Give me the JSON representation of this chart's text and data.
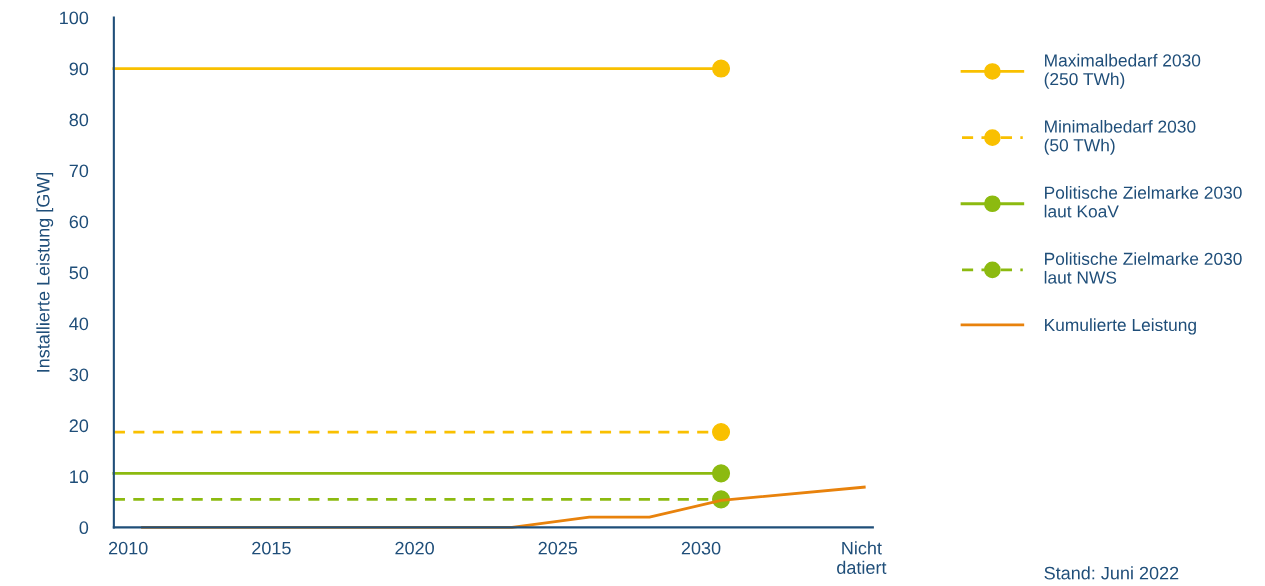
{
  "chart_data": {
    "type": "line",
    "ylabel": "Installierte Leistung [GW]",
    "xlim": [
      2009.5,
      2036
    ],
    "xticks": [
      2010,
      2015,
      2020,
      2025,
      2030,
      {
        "value": 2035.6,
        "label": "Nicht\ndatiert"
      }
    ],
    "ylim": [
      0,
      100
    ],
    "yticks": [
      0,
      10,
      20,
      30,
      40,
      50,
      60,
      70,
      80,
      90,
      100
    ],
    "grid": false,
    "legend": "right",
    "series": [
      {
        "name": "Maximalbedarf 2030\n(250 TWh)",
        "color": "#f9c000",
        "x": [
          2009.5,
          2030.7
        ],
        "values": [
          90,
          90
        ],
        "marker": "circle",
        "line_style": "solid"
      },
      {
        "name": "Minimalbedarf 2030\n(50 TWh)",
        "color": "#f9c000",
        "x": [
          2009.5,
          2030.7
        ],
        "values": [
          18.7,
          18.7
        ],
        "marker": "circle",
        "line_style": "dashed"
      },
      {
        "name": "Politische Zielmarke 2030\nlaut KoaV",
        "color": "#8cba10",
        "x": [
          2009.5,
          2030.7
        ],
        "values": [
          10.6,
          10.6
        ],
        "marker": "circle",
        "line_style": "solid"
      },
      {
        "name": "Politische Zielmarke 2030\nlaut NWS",
        "color": "#8cba10",
        "x": [
          2009.5,
          2030.7
        ],
        "values": [
          5.5,
          5.5
        ],
        "marker": "circle",
        "line_style": "dashed"
      },
      {
        "name": "Kumulierte Leistung",
        "color": "#e8820c",
        "x": [
          2010.5,
          2023.4,
          2026.1,
          2028.2,
          2030.7,
          2035.7
        ],
        "values": [
          0,
          0,
          2,
          2,
          5.3,
          7.9
        ],
        "marker": "none",
        "line_style": "solid"
      }
    ],
    "annotations": [
      "Stand: Juni 2022"
    ]
  }
}
